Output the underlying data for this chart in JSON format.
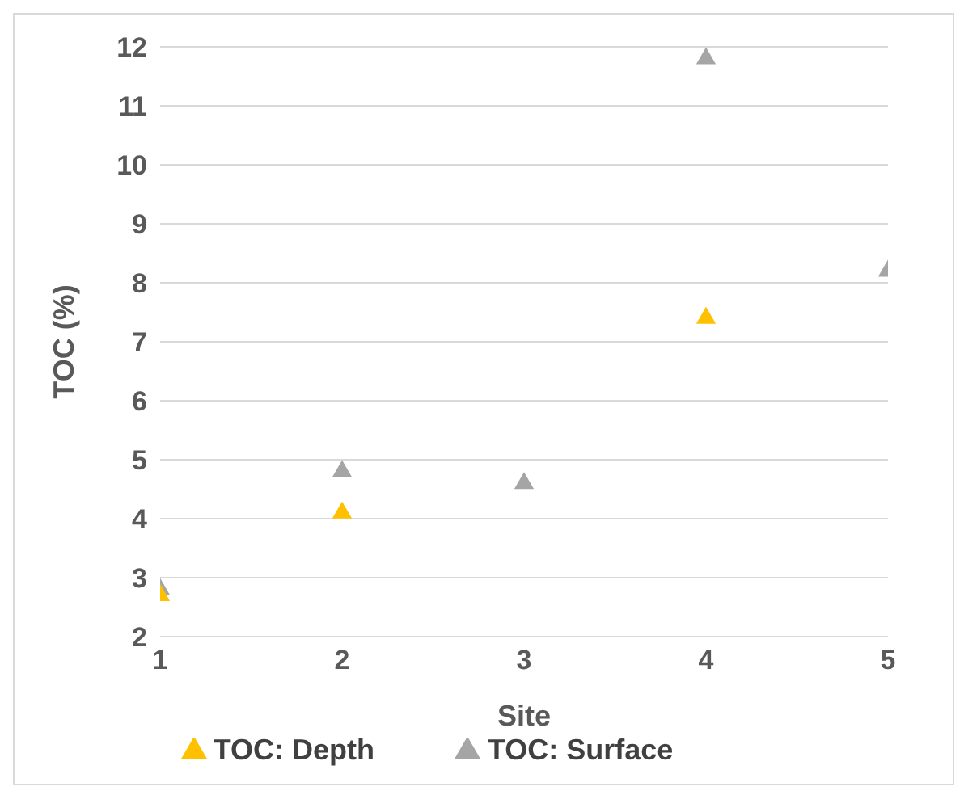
{
  "chart_data": {
    "type": "scatter",
    "xlabel": "Site",
    "ylabel": "TOC (%)",
    "x": [
      1,
      2,
      3,
      4,
      5
    ],
    "series": [
      {
        "name": "TOC: Surface",
        "color": "#a5a5a5",
        "values": [
          2.8,
          4.8,
          4.6,
          11.8,
          8.2
        ]
      },
      {
        "name": "TOC: Depth",
        "color": "#ffc000",
        "values": [
          2.7,
          4.1,
          null,
          7.4,
          null
        ]
      }
    ],
    "xlim": [
      1,
      5
    ],
    "xticks": [
      1,
      2,
      3,
      4,
      5
    ],
    "ylim": [
      2,
      12
    ],
    "yticks": [
      2,
      3,
      4,
      5,
      6,
      7,
      8,
      9,
      10,
      11,
      12
    ],
    "grid": "y",
    "legend": "bottom",
    "marker": "triangle"
  }
}
